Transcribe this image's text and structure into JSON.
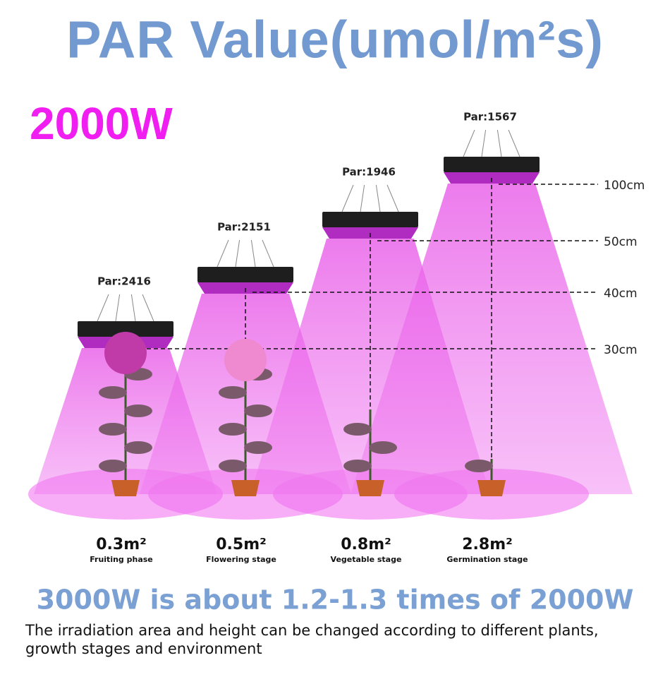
{
  "header": {
    "title": "PAR Value(umol/m²s)",
    "wattage": "2000W"
  },
  "lamps": [
    {
      "par": "Par:2416",
      "height": "30cm",
      "area": "0.3m²",
      "stage": "Fruiting phase"
    },
    {
      "par": "Par:2151",
      "height": "40cm",
      "area": "0.5m²",
      "stage": "Flowering stage"
    },
    {
      "par": "Par:1946",
      "height": "50cm",
      "area": "0.8m²",
      "stage": "Vegetable stage"
    },
    {
      "par": "Par:1567",
      "height": "100cm",
      "area": "2.8m²",
      "stage": "Germination stage"
    }
  ],
  "footer": {
    "headline": "3000W is about 1.2-1.3 times of 2000W",
    "note": "The irradiation area and height can be changed according to different plants, growth stages and environment"
  }
}
